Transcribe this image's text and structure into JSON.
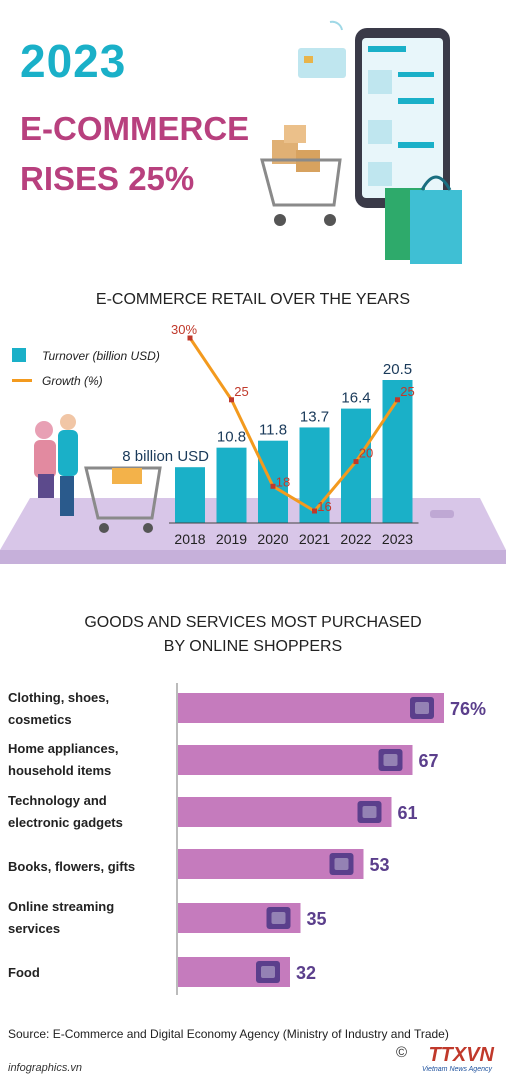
{
  "header": {
    "year": "2023",
    "line1": "E-COMMERCE",
    "line2": "RISES 25%"
  },
  "colors": {
    "teal": "#1ab0c8",
    "orange": "#f39a1e",
    "magenta": "#b8407e",
    "bar_pink": "#c57bbd",
    "purple_text": "#5b3f8c",
    "platform": "#d8c6e8"
  },
  "chart_data": [
    {
      "type": "bar",
      "title": "E-COMMERCE RETAIL OVER THE YEARS",
      "categories": [
        "2018",
        "2019",
        "2020",
        "2021",
        "2022",
        "2023"
      ],
      "series": [
        {
          "name": "Turnover (billion USD)",
          "values": [
            8,
            10.8,
            11.8,
            13.7,
            16.4,
            20.5
          ]
        },
        {
          "name": "Growth (%)",
          "type": "line",
          "values": [
            30,
            25,
            18,
            16,
            20,
            25
          ]
        }
      ],
      "value_labels": [
        "8 billion USD",
        "10.8",
        "11.8",
        "13.7",
        "16.4",
        "20.5"
      ],
      "growth_labels": [
        "30%",
        "25",
        "18",
        "16",
        "20",
        "25"
      ],
      "legend": "top-left"
    },
    {
      "type": "bar",
      "title": "GOODS AND SERVICES MOST PURCHASED BY ONLINE SHOPPERS",
      "orientation": "horizontal",
      "categories": [
        "Clothing, shoes, cosmetics",
        "Home appliances, household items",
        "Technology and electronic gadgets",
        "Books, flowers, gifts",
        "Online streaming services",
        "Food"
      ],
      "values": [
        76,
        67,
        61,
        53,
        35,
        32
      ],
      "value_labels": [
        "76%",
        "67",
        "61",
        "53",
        "35",
        "32"
      ]
    }
  ],
  "chart1": {
    "title": "E-COMMERCE RETAIL OVER THE YEARS",
    "legend_turnover": "Turnover (billion USD)",
    "legend_growth": "Growth (%)"
  },
  "chart2": {
    "title_line1": "GOODS AND SERVICES MOST PURCHASED",
    "title_line2": "BY ONLINE SHOPPERS",
    "labels": [
      [
        "Clothing, shoes,",
        "cosmetics"
      ],
      [
        "Home appliances,",
        "household items"
      ],
      [
        "Technology and",
        "electronic gadgets"
      ],
      [
        "Books, flowers, gifts"
      ],
      [
        "Online streaming",
        "services"
      ],
      [
        "Food"
      ]
    ]
  },
  "footer": {
    "source": "Source: E-Commerce and Digital Economy Agency (Ministry of Industry and Trade)",
    "site": "infographics.vn",
    "logo": "TTXVN",
    "logo_sub": "Vietnam News Agency",
    "copyright": "©"
  }
}
